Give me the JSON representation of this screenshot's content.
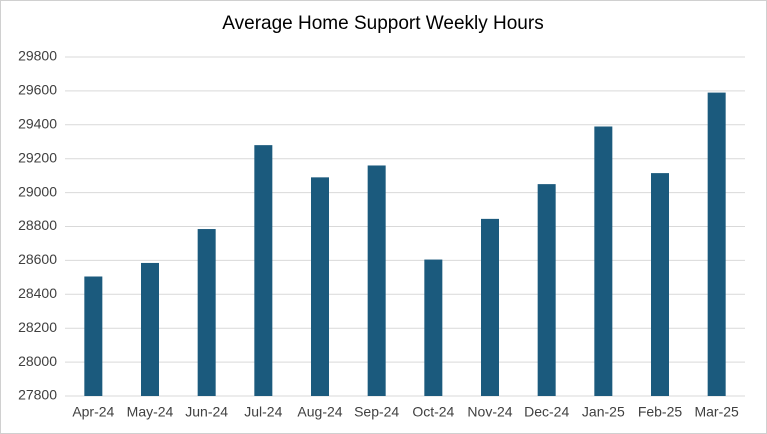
{
  "chart_data": {
    "type": "bar",
    "title": "Average Home Support Weekly Hours",
    "categories": [
      "Apr-24",
      "May-24",
      "Jun-24",
      "Jul-24",
      "Aug-24",
      "Sep-24",
      "Oct-24",
      "Nov-24",
      "Dec-24",
      "Jan-25",
      "Feb-25",
      "Mar-25"
    ],
    "values": [
      28505,
      28585,
      28785,
      29280,
      29090,
      29160,
      28605,
      28845,
      29050,
      29390,
      29115,
      29590
    ],
    "color": "#1b5a7d",
    "ylim": [
      27800,
      29800
    ],
    "yticks": [
      27800,
      28000,
      28200,
      28400,
      28600,
      28800,
      29000,
      29200,
      29400,
      29600,
      29800
    ],
    "grid": true
  }
}
